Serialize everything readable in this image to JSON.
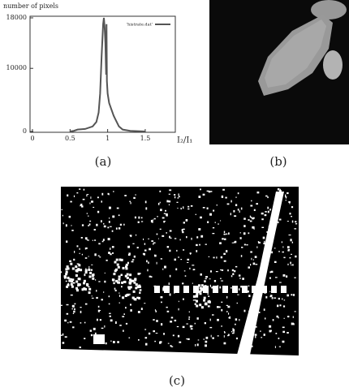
{
  "chart_data": {
    "type": "line",
    "y_label": "number of pixels",
    "x_label": "I₂/I₁",
    "x": [
      0.5,
      0.55,
      0.6,
      0.7,
      0.8,
      0.85,
      0.88,
      0.9,
      0.92,
      0.94,
      0.95,
      0.96,
      0.97,
      0.98,
      0.985,
      0.99,
      1.0,
      1.02,
      1.05,
      1.08,
      1.1,
      1.15,
      1.2,
      1.3,
      1.4,
      1.5
    ],
    "series": [
      {
        "name": "'histrate.dat'",
        "color": "#555555",
        "values": [
          0,
          100,
          300,
          400,
          800,
          1500,
          3000,
          6000,
          12000,
          17000,
          18000,
          16500,
          14000,
          9000,
          17000,
          8000,
          6000,
          4500,
          3500,
          2500,
          2000,
          800,
          300,
          100,
          50,
          0
        ]
      }
    ],
    "xlim": [
      0,
      1.9
    ],
    "xticks": [
      0,
      0.5,
      1,
      1.5
    ],
    "ylim": [
      0,
      18000
    ],
    "yticks": [
      0,
      10000,
      18000
    ],
    "legend": "upper right",
    "grid": false
  },
  "captions": [
    "(a)",
    "(b)",
    "(c)"
  ]
}
